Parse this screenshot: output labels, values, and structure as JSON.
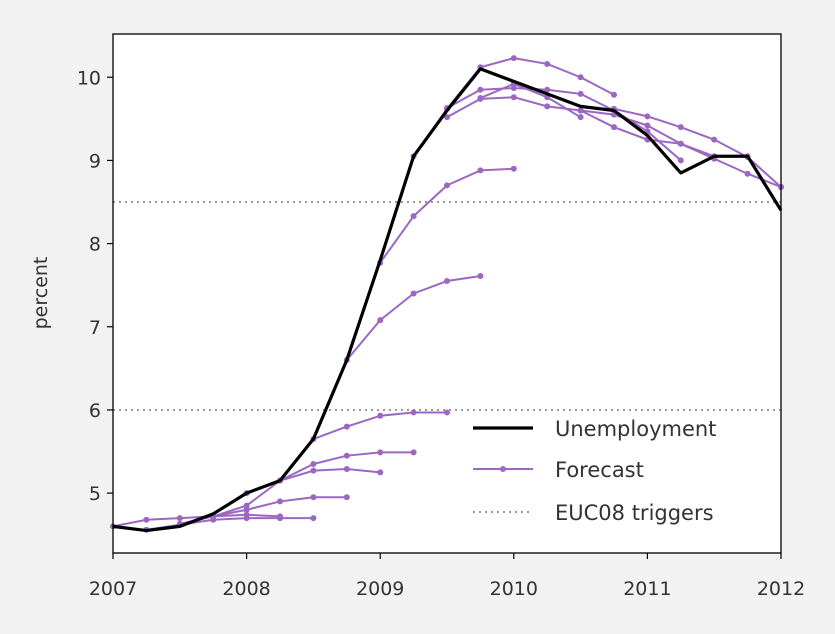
{
  "chart_data": {
    "type": "line",
    "ylabel": "percent",
    "xlim": [
      2007,
      2012
    ],
    "ylim": [
      4.28,
      10.52
    ],
    "x_ticks": [
      "2007",
      "2008",
      "2009",
      "2010",
      "2011",
      "2012"
    ],
    "y_ticks": [
      "5",
      "6",
      "7",
      "8",
      "9",
      "10"
    ],
    "legend": {
      "placement": "lower-right",
      "items": [
        "Unemployment",
        "Forecast",
        "EUC08 triggers"
      ]
    },
    "colors": {
      "unemployment": "#000000",
      "forecast": "#9b67c3",
      "trigger": "#999999",
      "background": "#ffffff"
    },
    "triggers": [
      6.0,
      8.5
    ],
    "unemployment": {
      "x": [
        2007.0,
        2007.25,
        2007.5,
        2007.75,
        2008.0,
        2008.25,
        2008.5,
        2008.75,
        2009.0,
        2009.25,
        2009.5,
        2009.75,
        2010.0,
        2010.25,
        2010.5,
        2010.75,
        2011.0,
        2011.25,
        2011.5,
        2011.75,
        2012.0
      ],
      "y": [
        4.6,
        4.55,
        4.6,
        4.75,
        5.0,
        5.15,
        5.65,
        6.6,
        7.8,
        9.05,
        9.6,
        10.1,
        9.95,
        9.8,
        9.65,
        9.6,
        9.3,
        8.85,
        9.05,
        9.05,
        8.4
      ]
    },
    "forecasts": [
      {
        "x": [
          2007.0,
          2007.25,
          2007.5,
          2007.75,
          2008.0,
          2008.25
        ],
        "y": [
          4.6,
          4.68,
          4.7,
          4.72,
          4.74,
          4.72
        ]
      },
      {
        "x": [
          2007.25,
          2007.5,
          2007.75,
          2008.0,
          2008.25,
          2008.5
        ],
        "y": [
          4.56,
          4.62,
          4.68,
          4.7,
          4.7,
          4.7
        ]
      },
      {
        "x": [
          2007.5,
          2007.75,
          2008.0,
          2008.25,
          2008.5,
          2008.75
        ],
        "y": [
          4.63,
          4.72,
          4.8,
          4.9,
          4.95,
          4.95
        ]
      },
      {
        "x": [
          2007.75,
          2008.0,
          2008.25,
          2008.5,
          2008.75,
          2009.0
        ],
        "y": [
          4.72,
          4.85,
          5.15,
          5.27,
          5.29,
          5.25
        ]
      },
      {
        "x": [
          2008.0,
          2008.25,
          2008.5,
          2008.75,
          2009.0,
          2009.25
        ],
        "y": [
          5.0,
          5.15,
          5.35,
          5.45,
          5.49,
          5.49
        ]
      },
      {
        "x": [
          2008.5,
          2008.75,
          2009.0,
          2009.25,
          2009.5
        ],
        "y": [
          5.65,
          5.8,
          5.93,
          5.97,
          5.97
        ]
      },
      {
        "x": [
          2008.75,
          2009.0,
          2009.25,
          2009.5,
          2009.75
        ],
        "y": [
          6.6,
          7.08,
          7.4,
          7.55,
          7.61
        ]
      },
      {
        "x": [
          2009.0,
          2009.25,
          2009.5,
          2009.75,
          2010.0
        ],
        "y": [
          7.77,
          8.33,
          8.7,
          8.88,
          8.9
        ]
      },
      {
        "x": [
          2009.25,
          2009.5,
          2009.75,
          2010.0,
          2010.25,
          2010.5,
          2010.75
        ],
        "y": [
          9.05,
          9.62,
          10.12,
          10.23,
          10.16,
          10.0,
          9.79
        ]
      },
      {
        "x": [
          2009.5,
          2009.75,
          2010.0,
          2010.25,
          2010.5,
          2010.75,
          2011.0,
          2011.25
        ],
        "y": [
          9.63,
          9.85,
          9.87,
          9.85,
          9.8,
          9.6,
          9.35,
          9.0
        ]
      },
      {
        "x": [
          2009.75,
          2010.0,
          2010.25,
          2010.5
        ],
        "y": [
          9.75,
          9.92,
          9.76,
          9.52
        ]
      },
      {
        "x": [
          2009.5,
          2009.75,
          2010.0,
          2010.25,
          2010.5,
          2010.75,
          2011.0,
          2011.25,
          2011.5,
          2011.75
        ],
        "y": [
          9.52,
          9.74,
          9.76,
          9.65,
          9.6,
          9.55,
          9.42,
          9.2,
          9.05,
          9.05
        ]
      },
      {
        "x": [
          2010.75,
          2011.0,
          2011.25,
          2011.5,
          2011.75,
          2012.0
        ],
        "y": [
          9.62,
          9.53,
          9.4,
          9.25,
          9.04,
          8.68
        ]
      },
      {
        "x": [
          2010.5,
          2010.75,
          2011.0,
          2011.25,
          2011.5,
          2011.75,
          2012.0
        ],
        "y": [
          9.6,
          9.4,
          9.25,
          9.2,
          9.02,
          8.84,
          8.68
        ]
      }
    ]
  }
}
